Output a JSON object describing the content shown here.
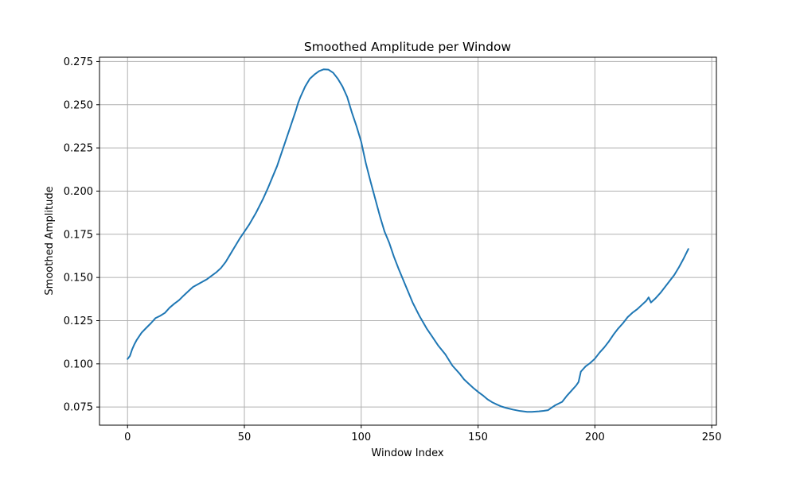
{
  "chart_data": {
    "type": "line",
    "title": "Smoothed Amplitude per Window",
    "xlabel": "Window Index",
    "ylabel": "Smoothed Amplitude",
    "xlim": [
      -12,
      252
    ],
    "ylim": [
      0.0645,
      0.2775
    ],
    "xticks": [
      0,
      50,
      100,
      150,
      200,
      250
    ],
    "xtick_labels": [
      "0",
      "50",
      "100",
      "150",
      "200",
      "250"
    ],
    "yticks": [
      0.075,
      0.1,
      0.125,
      0.15,
      0.175,
      0.2,
      0.225,
      0.25,
      0.275
    ],
    "ytick_labels": [
      "0.075",
      "0.100",
      "0.125",
      "0.150",
      "0.175",
      "0.200",
      "0.225",
      "0.250",
      "0.275"
    ],
    "grid": true,
    "line_color": "#1f77b4",
    "grid_color": "#b0b0b0",
    "series": [
      {
        "name": "",
        "x": [
          0,
          1,
          2,
          3,
          4,
          5,
          6,
          8,
          10,
          12,
          14,
          16,
          18,
          20,
          22,
          24,
          26,
          28,
          30,
          32,
          34,
          36,
          38,
          40,
          42,
          44,
          46,
          48,
          50,
          52,
          55,
          58,
          60,
          62,
          64,
          65,
          66,
          68,
          70,
          72,
          73,
          74,
          76,
          78,
          80,
          82,
          84,
          86,
          88,
          90,
          92,
          94,
          96,
          98,
          100,
          102,
          104,
          106,
          108,
          110,
          112,
          114,
          116,
          118,
          120,
          122,
          125,
          128,
          130,
          133,
          136,
          139,
          142,
          144,
          146,
          148,
          150,
          152,
          154,
          156,
          158,
          160,
          162,
          165,
          168,
          171,
          173,
          176,
          178,
          180,
          181,
          183,
          186,
          188,
          190,
          192,
          193,
          194,
          196,
          198,
          200,
          202,
          204,
          206,
          208,
          210,
          212,
          214,
          216,
          218,
          220,
          222,
          223,
          224,
          226,
          228,
          230,
          232,
          234,
          236,
          238,
          240
        ],
        "values": [
          0.1028,
          0.1045,
          0.1085,
          0.1115,
          0.114,
          0.116,
          0.118,
          0.1208,
          0.1235,
          0.1265,
          0.1278,
          0.1295,
          0.1325,
          0.1348,
          0.1368,
          0.1395,
          0.142,
          0.1445,
          0.146,
          0.1475,
          0.149,
          0.151,
          0.153,
          0.1555,
          0.159,
          0.1635,
          0.168,
          0.1725,
          0.1765,
          0.1805,
          0.1875,
          0.1955,
          0.2015,
          0.208,
          0.2145,
          0.2185,
          0.2225,
          0.2305,
          0.2385,
          0.2465,
          0.251,
          0.2545,
          0.2605,
          0.265,
          0.2675,
          0.2695,
          0.2705,
          0.2703,
          0.2685,
          0.265,
          0.2605,
          0.2545,
          0.2455,
          0.2375,
          0.2285,
          0.216,
          0.2055,
          0.1955,
          0.1855,
          0.1765,
          0.17,
          0.162,
          0.155,
          0.1485,
          0.142,
          0.1355,
          0.1275,
          0.1205,
          0.1165,
          0.1105,
          0.1055,
          0.099,
          0.0945,
          0.091,
          0.0885,
          0.086,
          0.0838,
          0.0818,
          0.0795,
          0.0778,
          0.0765,
          0.0753,
          0.0745,
          0.0735,
          0.0727,
          0.0722,
          0.0722,
          0.0725,
          0.0728,
          0.0732,
          0.0742,
          0.076,
          0.078,
          0.0815,
          0.0845,
          0.0875,
          0.0895,
          0.0955,
          0.0985,
          0.1005,
          0.103,
          0.1065,
          0.1095,
          0.113,
          0.117,
          0.1205,
          0.1235,
          0.127,
          0.1295,
          0.1315,
          0.134,
          0.1365,
          0.1385,
          0.1355,
          0.138,
          0.141,
          0.1445,
          0.148,
          0.1515,
          0.156,
          0.161,
          0.1665
        ]
      }
    ]
  }
}
